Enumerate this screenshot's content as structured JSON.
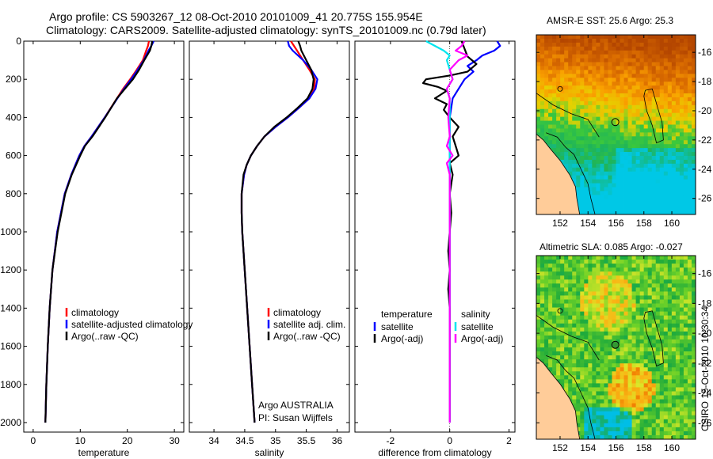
{
  "title_line1": "Argo profile: CS 5903267_12 08-Oct-2010 20101009_41 20.775S 155.954E",
  "title_line2": "Climatology: CARS2009. Satellite-adjusted climatology: synTS_20101009.nc (0.79d later)",
  "side_text": "CSIRO 15-Oct-2010 10:30:34",
  "colors": {
    "climatology": "#ff0000",
    "satellite": "#0000ff",
    "argo": "#000000",
    "salinity_sat": "#00e5ee",
    "salinity_argo": "#ff00ff"
  },
  "chart_data": [
    {
      "type": "line",
      "id": "temperature",
      "xlabel": "temperature",
      "ylabel": "",
      "xlim": [
        -2,
        32
      ],
      "ylim": [
        2050,
        0
      ],
      "xticks": [
        0,
        10,
        20,
        30
      ],
      "xtick_labels": [
        "0",
        "10",
        "20",
        "30"
      ],
      "yticks": [
        0,
        200,
        400,
        600,
        800,
        1000,
        1200,
        1400,
        1600,
        1800,
        2000
      ],
      "ytick_labels": [
        "0",
        "200",
        "400",
        "600",
        "800",
        "1000",
        "1200",
        "1400",
        "1600",
        "1800",
        "2000"
      ],
      "legend": [
        "climatology",
        "satellite-adjusted climatology",
        "Argo(..raw -QC)"
      ],
      "series": [
        {
          "name": "climatology",
          "depth": [
            0,
            25,
            50,
            100,
            150,
            200,
            250,
            300,
            400,
            500,
            550,
            600,
            700,
            800,
            1000,
            1200,
            1400,
            1600,
            1800,
            2000
          ],
          "values": [
            24.6,
            24.4,
            24.0,
            23.3,
            22.0,
            20.6,
            19.1,
            17.8,
            15.2,
            12.4,
            10.9,
            9.8,
            8.1,
            6.7,
            5.1,
            4.1,
            3.5,
            3.1,
            2.8,
            2.6
          ]
        },
        {
          "name": "satellite",
          "depth": [
            0,
            25,
            50,
            100,
            150,
            200,
            250,
            300,
            400,
            500,
            550,
            600,
            700,
            800,
            1000,
            1200,
            1400,
            1600,
            1800,
            2000
          ],
          "values": [
            25.6,
            25.1,
            24.5,
            23.5,
            22.2,
            20.8,
            19.3,
            17.9,
            15.2,
            12.4,
            10.9,
            9.8,
            8.1,
            6.7,
            5.1,
            4.1,
            3.5,
            3.1,
            2.8,
            2.6
          ]
        },
        {
          "name": "Argo",
          "depth": [
            0,
            25,
            50,
            100,
            150,
            200,
            250,
            300,
            400,
            500,
            550,
            600,
            700,
            800,
            1000,
            1200,
            1400,
            1600,
            1800,
            2000
          ],
          "values": [
            25.3,
            25.1,
            24.8,
            23.6,
            22.5,
            21.2,
            19.5,
            17.8,
            15.3,
            12.6,
            11.0,
            10.0,
            8.2,
            6.8,
            5.2,
            4.1,
            3.5,
            3.1,
            2.8,
            2.6
          ]
        }
      ]
    },
    {
      "type": "line",
      "id": "salinity",
      "xlabel": "salinity",
      "ylabel": "",
      "xlim": [
        33.6,
        36.2
      ],
      "ylim": [
        2050,
        0
      ],
      "xticks": [
        34,
        34.5,
        35,
        35.5,
        36
      ],
      "xtick_labels": [
        "34",
        "34.5",
        "35",
        "35.5",
        "36"
      ],
      "legend": [
        "climatology",
        "satellite adj. clim.",
        "Argo(..raw -QC)"
      ],
      "annotation_line1": "Argo AUSTRALIA",
      "annotation_line2": "PI: Susan Wijffels",
      "series": [
        {
          "name": "climatology",
          "depth": [
            0,
            25,
            50,
            100,
            150,
            200,
            250,
            300,
            350,
            400,
            450,
            500,
            550,
            600,
            650,
            700,
            800,
            900,
            1000,
            1200,
            1400,
            1600,
            1800,
            2000
          ],
          "values": [
            35.25,
            35.3,
            35.35,
            35.45,
            35.55,
            35.64,
            35.63,
            35.55,
            35.38,
            35.2,
            35.0,
            34.82,
            34.7,
            34.6,
            34.53,
            34.49,
            34.45,
            34.45,
            34.46,
            34.5,
            34.54,
            34.58,
            34.62,
            34.66
          ]
        },
        {
          "name": "satellite",
          "depth": [
            0,
            25,
            50,
            100,
            150,
            200,
            250,
            300,
            350,
            400,
            450,
            500,
            550,
            600,
            650,
            700,
            800,
            900,
            1000,
            1200,
            1400,
            1600,
            1800,
            2000
          ],
          "values": [
            35.2,
            35.22,
            35.28,
            35.45,
            35.58,
            35.68,
            35.65,
            35.55,
            35.38,
            35.2,
            35.0,
            34.82,
            34.7,
            34.6,
            34.53,
            34.49,
            34.45,
            34.45,
            34.46,
            34.5,
            34.54,
            34.58,
            34.62,
            34.66
          ]
        },
        {
          "name": "Argo",
          "depth": [
            0,
            25,
            50,
            100,
            150,
            200,
            250,
            300,
            350,
            400,
            450,
            500,
            550,
            600,
            650,
            700,
            800,
            900,
            1000,
            1200,
            1400,
            1600,
            1800,
            2000
          ],
          "values": [
            35.37,
            35.4,
            35.42,
            35.5,
            35.58,
            35.62,
            35.6,
            35.52,
            35.36,
            35.18,
            34.98,
            34.82,
            34.7,
            34.6,
            34.53,
            34.48,
            34.45,
            34.45,
            34.46,
            34.5,
            34.54,
            34.58,
            34.62,
            34.66
          ]
        }
      ]
    },
    {
      "type": "line",
      "id": "difference",
      "xlabel": "difference from climatology",
      "ylabel": "",
      "xlim": [
        -3.2,
        2.2
      ],
      "ylim": [
        2050,
        0
      ],
      "xticks": [
        -2,
        0,
        2
      ],
      "xtick_labels": [
        "-2",
        "0",
        "2"
      ],
      "legend_temperature_header": "temperature",
      "legend_salinity_header": "salinity",
      "legend": [
        "satellite",
        "Argo(-adj)",
        "satellite",
        "Argo(-adj)"
      ],
      "series": [
        {
          "name": "temperature satellite",
          "depth": [
            0,
            25,
            50,
            75,
            100,
            130,
            160,
            200,
            250,
            300,
            400,
            500,
            600,
            700,
            800,
            1000,
            1500,
            2000
          ],
          "values": [
            1.6,
            1.7,
            1.5,
            1.1,
            0.9,
            0.6,
            0.8,
            0.5,
            0.3,
            0.1,
            0.0,
            0.0,
            0.0,
            0.0,
            0.0,
            0.0,
            0.0,
            0.0
          ]
        },
        {
          "name": "temperature Argo(-adj)",
          "depth": [
            0,
            40,
            80,
            120,
            160,
            180,
            200,
            220,
            240,
            260,
            280,
            300,
            330,
            360,
            400,
            450,
            500,
            550,
            600,
            640,
            700,
            800,
            900,
            1000,
            1100,
            1200,
            1300,
            1400,
            1500,
            1600,
            1700,
            1800,
            1900,
            2000
          ],
          "values": [
            0.4,
            0.5,
            0.6,
            0.9,
            0.6,
            0.0,
            -0.8,
            -0.9,
            -0.4,
            -0.1,
            -0.3,
            -0.5,
            -0.1,
            -0.2,
            0.0,
            0.3,
            0.1,
            0.2,
            0.3,
            0.0,
            0.1,
            0.0,
            0.05,
            0.0,
            -0.05,
            0.0,
            -0.05,
            0.0,
            0.0,
            0.0,
            0.0,
            0.0,
            0.0,
            0.0
          ]
        },
        {
          "name": "salinity satellite",
          "depth": [
            0,
            25,
            50,
            75,
            100,
            150,
            200,
            250,
            300,
            400,
            500,
            600,
            700,
            800,
            1000,
            1500,
            2000
          ],
          "values": [
            -0.8,
            -0.5,
            -0.2,
            0.0,
            -0.1,
            0.0,
            0.1,
            -0.1,
            0.0,
            0.0,
            0.0,
            0.0,
            0.0,
            0.0,
            0.0,
            0.0,
            0.0
          ]
        },
        {
          "name": "salinity Argo(-adj)",
          "depth": [
            0,
            25,
            50,
            75,
            100,
            150,
            200,
            250,
            300,
            400,
            500,
            550,
            600,
            640,
            700,
            800,
            1000,
            1200,
            1500,
            2000
          ],
          "values": [
            0.5,
            0.4,
            0.2,
            0.6,
            0.3,
            0.0,
            0.1,
            -0.1,
            0.0,
            -0.05,
            0.0,
            -0.1,
            0.1,
            -0.1,
            0.0,
            0.0,
            0.0,
            0.0,
            0.0,
            0.0
          ]
        }
      ]
    },
    {
      "type": "heatmap",
      "id": "sst_map",
      "title": "AMSR-E SST: 25.6 Argo: 25.3",
      "xticks": [
        152,
        154,
        156,
        158,
        160
      ],
      "xtick_labels": [
        "152",
        "154",
        "156",
        "158",
        "160"
      ],
      "yticks": [
        -16,
        -18,
        -20,
        -22,
        -24,
        -26
      ],
      "ytick_labels": [
        "-16",
        "-18",
        "-20",
        "-22",
        "-24",
        "-26"
      ],
      "xlim": [
        150.3,
        161.7
      ],
      "ylim": [
        -14.8,
        -27.1
      ]
    },
    {
      "type": "heatmap",
      "id": "sla_map",
      "title": "Altimetric SLA: 0.085 Argo: -0.027",
      "xticks": [
        152,
        154,
        156,
        158,
        160
      ],
      "xtick_labels": [
        "152",
        "154",
        "156",
        "158",
        "160"
      ],
      "yticks": [
        -16,
        -18,
        -20,
        -22,
        -24,
        -26
      ],
      "ytick_labels": [
        "-16",
        "-18",
        "-20",
        "-22",
        "-24",
        "-26"
      ],
      "xlim": [
        150.3,
        161.7
      ],
      "ylim": [
        -14.8,
        -27.1
      ]
    }
  ]
}
